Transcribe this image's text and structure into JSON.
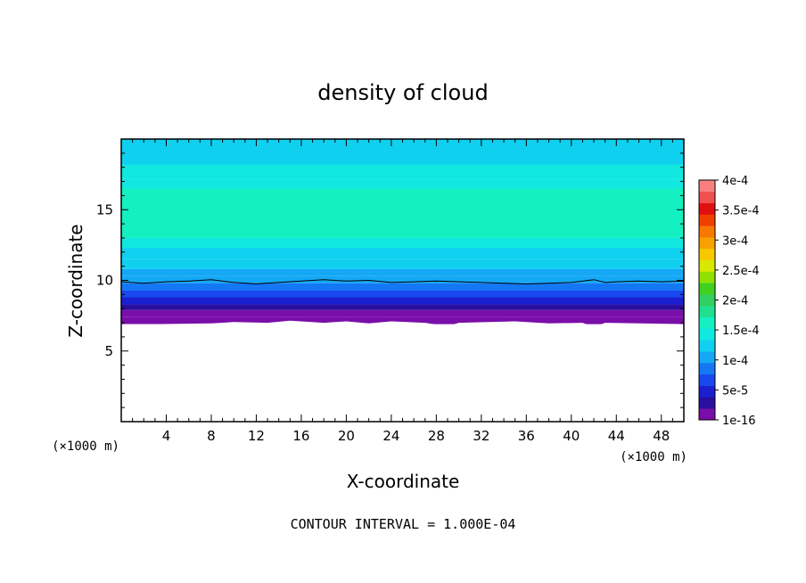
{
  "chart_data": {
    "type": "heatmap",
    "title": "density of cloud",
    "xlabel": "X-coordinate",
    "ylabel": "Z-coordinate",
    "x_unit_left": "(×1000 m)",
    "x_unit_right": "(×1000 m)",
    "xlim": [
      0,
      50
    ],
    "ylim": [
      0,
      20
    ],
    "x_ticks": [
      4,
      8,
      12,
      16,
      20,
      24,
      28,
      32,
      36,
      40,
      44,
      48
    ],
    "y_ticks": [
      5,
      10,
      15
    ],
    "footer": "CONTOUR INTERVAL = 1.000E-04",
    "colorbar": {
      "labels": [
        "4e-4",
        "3.5e-4",
        "3e-4",
        "2.5e-4",
        "2e-4",
        "1.5e-4",
        "1e-4",
        "5e-5",
        "1e-16"
      ],
      "levels": [
        1e-16,
        5e-05,
        0.0001,
        0.00015,
        0.0002,
        0.00025,
        0.0003,
        0.00035,
        0.0004
      ],
      "colors": [
        "#7a0ea8",
        "#2a0ea0",
        "#1a20d0",
        "#1848f0",
        "#1478f5",
        "#14a8f5",
        "#10d0f0",
        "#10e8e0",
        "#14f0c0",
        "#20e090",
        "#30d060",
        "#40d020",
        "#90e000",
        "#d8e800",
        "#f8c800",
        "#f8a000",
        "#f87800",
        "#f04000",
        "#e01010",
        "#f05050",
        "#f88080"
      ]
    },
    "bands": [
      {
        "z0": 6.9,
        "z1": 7.4,
        "value": 5e-06
      },
      {
        "z0": 7.4,
        "z1": 7.9,
        "value": 1.5e-05
      },
      {
        "z0": 7.9,
        "z1": 8.3,
        "value": 3e-05
      },
      {
        "z0": 8.3,
        "z1": 8.8,
        "value": 4.5e-05
      },
      {
        "z0": 8.8,
        "z1": 9.3,
        "value": 6e-05
      },
      {
        "z0": 9.3,
        "z1": 9.8,
        "value": 8e-05
      },
      {
        "z0": 9.8,
        "z1": 10.3,
        "value": 0.0001
      },
      {
        "z0": 10.3,
        "z1": 10.8,
        "value": 0.00011
      },
      {
        "z0": 10.8,
        "z1": 11.5,
        "value": 0.00012
      },
      {
        "z0": 11.5,
        "z1": 12.3,
        "value": 0.00013
      },
      {
        "z0": 12.3,
        "z1": 13.0,
        "value": 0.00014
      },
      {
        "z0": 13.0,
        "z1": 16.5,
        "value": 0.000155
      },
      {
        "z0": 16.5,
        "z1": 17.2,
        "value": 0.000145
      },
      {
        "z0": 17.2,
        "z1": 18.2,
        "value": 0.000135
      },
      {
        "z0": 18.2,
        "z1": 20.0,
        "value": 0.000125
      }
    ],
    "contour_level": 0.0001,
    "contour_line": [
      [
        0,
        9.9
      ],
      [
        2,
        9.8
      ],
      [
        4,
        9.9
      ],
      [
        6,
        9.95
      ],
      [
        8,
        10.05
      ],
      [
        10,
        9.85
      ],
      [
        12,
        9.75
      ],
      [
        14,
        9.85
      ],
      [
        16,
        9.95
      ],
      [
        18,
        10.05
      ],
      [
        20,
        9.95
      ],
      [
        22,
        10.0
      ],
      [
        24,
        9.85
      ],
      [
        26,
        9.9
      ],
      [
        28,
        9.95
      ],
      [
        30,
        9.9
      ],
      [
        32,
        9.85
      ],
      [
        34,
        9.8
      ],
      [
        36,
        9.75
      ],
      [
        38,
        9.8
      ],
      [
        40,
        9.85
      ],
      [
        42,
        10.05
      ],
      [
        43,
        9.85
      ],
      [
        44,
        9.9
      ],
      [
        46,
        9.95
      ],
      [
        48,
        9.9
      ],
      [
        50,
        9.95
      ]
    ],
    "cloud_base": [
      [
        0,
        6.9
      ],
      [
        3,
        6.9
      ],
      [
        8,
        6.95
      ],
      [
        10,
        7.05
      ],
      [
        13,
        7.0
      ],
      [
        15,
        7.15
      ],
      [
        18,
        7.0
      ],
      [
        20,
        7.1
      ],
      [
        22,
        6.95
      ],
      [
        24,
        7.1
      ],
      [
        27,
        7.0
      ],
      [
        29,
        6.75
      ],
      [
        30,
        7.0
      ],
      [
        35,
        7.1
      ],
      [
        38,
        6.95
      ],
      [
        41,
        7.0
      ],
      [
        42,
        6.7
      ],
      [
        43,
        7.0
      ],
      [
        50,
        6.9
      ]
    ]
  }
}
